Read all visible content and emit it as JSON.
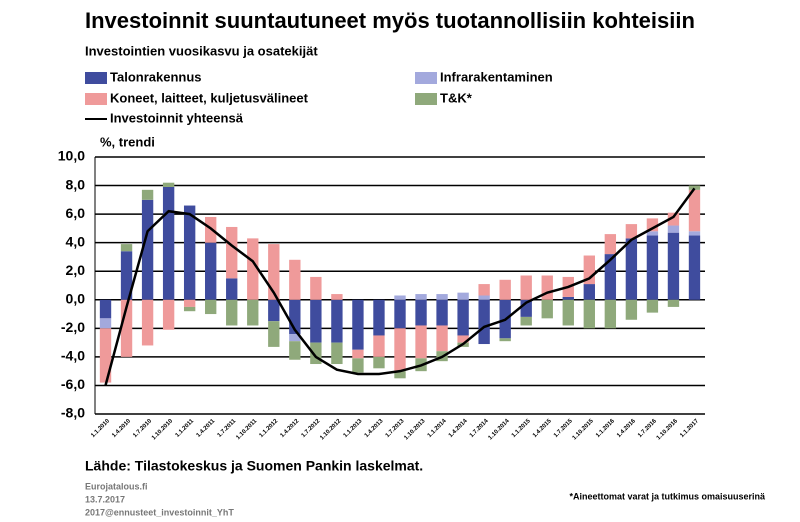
{
  "chart_data": {
    "type": "bar",
    "stacked": true,
    "title": "Investoinnit suuntautuneet myös tuotannollisiin kohteisiin",
    "subtitle": "Investointien vuosikasvu ja osatekijät",
    "y_label": "%, trendi",
    "source": "Lähde: Tilastokeskus ja Suomen Pankin laskelmat.",
    "footer_left": [
      "Eurojatalous.fi",
      "13.7.2017",
      "2017@ennusteet_investoinnit_YhT"
    ],
    "footnote": "*Aineettomat varat ja tutkimus omaisuuserinä",
    "categories": [
      "1.1.2010",
      "1.4.2010",
      "1.7.2010",
      "1.10.2010",
      "1.1.2011",
      "1.4.2011",
      "1.7.2011",
      "1.10.2011",
      "1.1.2012",
      "1.4.2012",
      "1.7.2012",
      "1.10.2012",
      "1.1.2013",
      "1.4.2013",
      "1.7.2013",
      "1.10.2013",
      "1.1.2014",
      "1.4.2014",
      "1.7.2014",
      "1.10.2014",
      "1.1.2015",
      "1.4.2015",
      "1.7.2015",
      "1.10.2015",
      "1.1.2016",
      "1.4.2016",
      "1.7.2016",
      "1.10.2016",
      "1.1.2017"
    ],
    "series": [
      {
        "name": "Talonrakennus",
        "color": "#3f4c9e",
        "values": [
          -1.3,
          3.4,
          7.0,
          7.9,
          6.6,
          4.0,
          1.5,
          0,
          -1.5,
          -2.4,
          -3.0,
          -3.0,
          -3.5,
          -2.5,
          -2.0,
          -1.8,
          -1.8,
          -2.5,
          -3.1,
          -2.7,
          -1.2,
          0,
          0.2,
          1.1,
          3.2,
          4.3,
          4.5,
          4.7,
          4.5
        ]
      },
      {
        "name": "Infrarakentaminen",
        "color": "#a3a9dd",
        "values": [
          -0.7,
          0,
          0,
          0,
          0,
          0,
          0,
          0,
          0,
          -0.5,
          0,
          0,
          0,
          0,
          0.3,
          0.4,
          0.4,
          0.5,
          0.3,
          0,
          0,
          0,
          0,
          0,
          0,
          0,
          0.3,
          0.5,
          0.3
        ]
      },
      {
        "name": "Koneet, laitteet, kuljetusvälineet",
        "color": "#ef9a9a",
        "values": [
          -3.8,
          -4.0,
          -3.2,
          -2.1,
          -0.5,
          1.8,
          3.6,
          4.3,
          3.9,
          2.8,
          1.6,
          0.4,
          -0.6,
          -1.5,
          -3.0,
          -2.3,
          -1.8,
          -0.5,
          0.8,
          1.4,
          1.7,
          1.7,
          1.4,
          2.0,
          1.4,
          1.0,
          0.9,
          0.9,
          2.9
        ]
      },
      {
        "name": "T&K*",
        "color": "#8fa97b",
        "values": [
          0,
          0.5,
          0.7,
          0.3,
          -0.3,
          -1.0,
          -1.8,
          -1.8,
          -1.8,
          -1.3,
          -1.5,
          -1.5,
          -1.0,
          -0.8,
          -0.5,
          -0.9,
          -0.7,
          -0.3,
          0,
          -0.2,
          -0.6,
          -1.3,
          -1.8,
          -2.0,
          -2.0,
          -1.4,
          -0.9,
          -0.5,
          0.3
        ]
      }
    ],
    "line": {
      "name": "Investoinnit yhteensä",
      "color": "#000000",
      "values": [
        -6.0,
        -0.5,
        4.8,
        6.2,
        6.0,
        5.0,
        3.8,
        2.7,
        0.5,
        -2.1,
        -4.0,
        -4.9,
        -5.2,
        -5.2,
        -5.0,
        -4.6,
        -4.0,
        -3.1,
        -1.9,
        -1.4,
        -0.2,
        0.5,
        0.9,
        1.5,
        2.8,
        4.2,
        5.0,
        5.8,
        7.8
      ]
    },
    "ylim": [
      -8,
      10
    ],
    "yticks": [
      {
        "value": -8,
        "label": "-8,0"
      },
      {
        "value": -6,
        "label": "-6,0"
      },
      {
        "value": -4,
        "label": "-4,0"
      },
      {
        "value": -2,
        "label": "-2,0"
      },
      {
        "value": 0,
        "label": "0,0"
      },
      {
        "value": 2,
        "label": "2,0"
      },
      {
        "value": 4,
        "label": "4,0"
      },
      {
        "value": 6,
        "label": "6,0"
      },
      {
        "value": 8,
        "label": "8,0"
      },
      {
        "value": 10,
        "label": "10,0"
      }
    ],
    "grid": true
  }
}
